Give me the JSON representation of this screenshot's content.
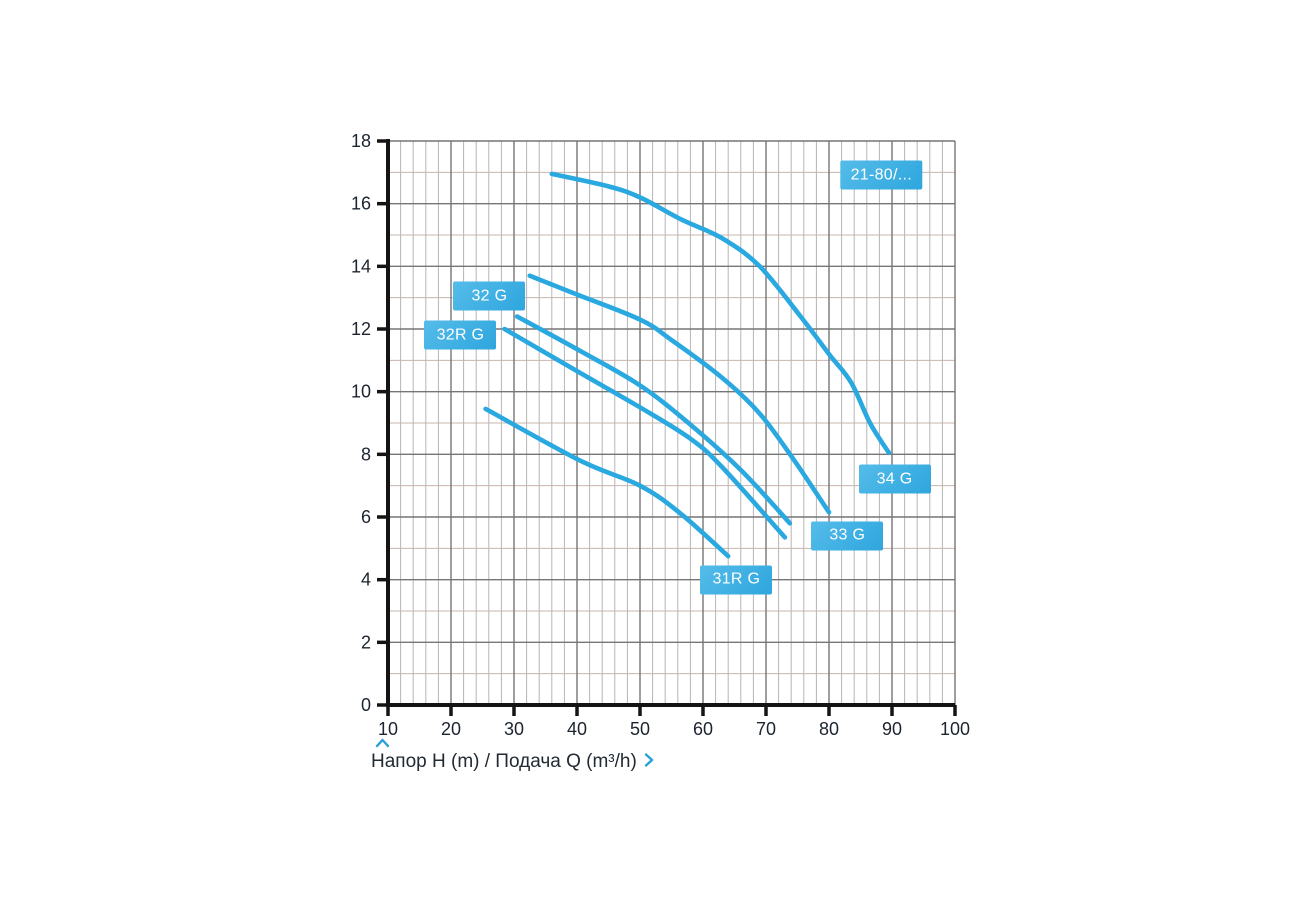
{
  "chart_data": {
    "type": "line",
    "title": "",
    "caption": "Напор H (m) / Подача Q (m³/h)",
    "x_axis": {
      "min": 10,
      "max": 100,
      "major_step": 10,
      "minor_step": 2,
      "tick_labels": [
        "10",
        "20",
        "30",
        "40",
        "50",
        "60",
        "70",
        "80",
        "90",
        "100"
      ],
      "grid": true
    },
    "y_axis": {
      "min": 0,
      "max": 18,
      "major_step": 2,
      "minor_step": 1,
      "tick_labels": [
        "0",
        "2",
        "4",
        "6",
        "8",
        "10",
        "12",
        "14",
        "16",
        "18"
      ],
      "grid": true
    },
    "series": [
      {
        "name": "34 G",
        "points": [
          [
            36,
            16.95
          ],
          [
            45,
            16.55
          ],
          [
            50,
            16.2
          ],
          [
            56.5,
            15.5
          ],
          [
            63,
            14.9
          ],
          [
            69,
            14.0
          ],
          [
            75.5,
            12.4
          ],
          [
            80,
            11.2
          ],
          [
            83.5,
            10.3
          ],
          [
            86.5,
            9.0
          ],
          [
            89.5,
            8.05
          ]
        ]
      },
      {
        "name": "33 G",
        "points": [
          [
            32.5,
            13.7
          ],
          [
            40,
            13.1
          ],
          [
            50,
            12.3
          ],
          [
            55,
            11.65
          ],
          [
            63,
            10.45
          ],
          [
            69,
            9.3
          ],
          [
            74.5,
            7.8
          ],
          [
            80,
            6.15
          ]
        ]
      },
      {
        "name": "32 G",
        "points": [
          [
            30.5,
            12.4
          ],
          [
            40.5,
            11.3
          ],
          [
            50,
            10.2
          ],
          [
            58,
            8.95
          ],
          [
            66,
            7.5
          ],
          [
            73.8,
            5.8
          ]
        ]
      },
      {
        "name": "32R G",
        "points": [
          [
            28.5,
            12.0
          ],
          [
            40.5,
            10.6
          ],
          [
            50,
            9.5
          ],
          [
            58,
            8.5
          ],
          [
            63,
            7.6
          ],
          [
            73,
            5.35
          ]
        ]
      },
      {
        "name": "31R G",
        "points": [
          [
            25.5,
            9.45
          ],
          [
            40.5,
            7.8
          ],
          [
            50,
            7.0
          ],
          [
            56.5,
            6.1
          ],
          [
            64,
            4.75
          ]
        ]
      }
    ],
    "badges": [
      {
        "text": "21-80/...",
        "q": 88.3,
        "h": 16.9
      },
      {
        "text": "32 G",
        "q": 26.1,
        "h": 13.05
      },
      {
        "text": "32R G",
        "q": 21.5,
        "h": 11.8
      },
      {
        "text": "34 G",
        "q": 90.4,
        "h": 7.2
      },
      {
        "text": "33 G",
        "q": 82.9,
        "h": 5.4
      },
      {
        "text": "31R G",
        "q": 65.3,
        "h": 4.0
      }
    ],
    "icons": {
      "y_axis_direction": "chevron-up-icon",
      "x_axis_direction": "chevron-right-icon"
    },
    "colors": {
      "curve": "#2aa8e0",
      "badge_bg": "#3bafe2",
      "badge_text": "#ffffff",
      "grid_minor_vertical": "#b5b5b5",
      "grid_minor_horizontal": "#c8b4ad",
      "grid_major": "#757575",
      "axis": "#141414",
      "tick_label": "#1c2430",
      "caption_text": "#222b34",
      "caption_accent": "#2b9fd9"
    },
    "legend_position": "inline-badges"
  }
}
